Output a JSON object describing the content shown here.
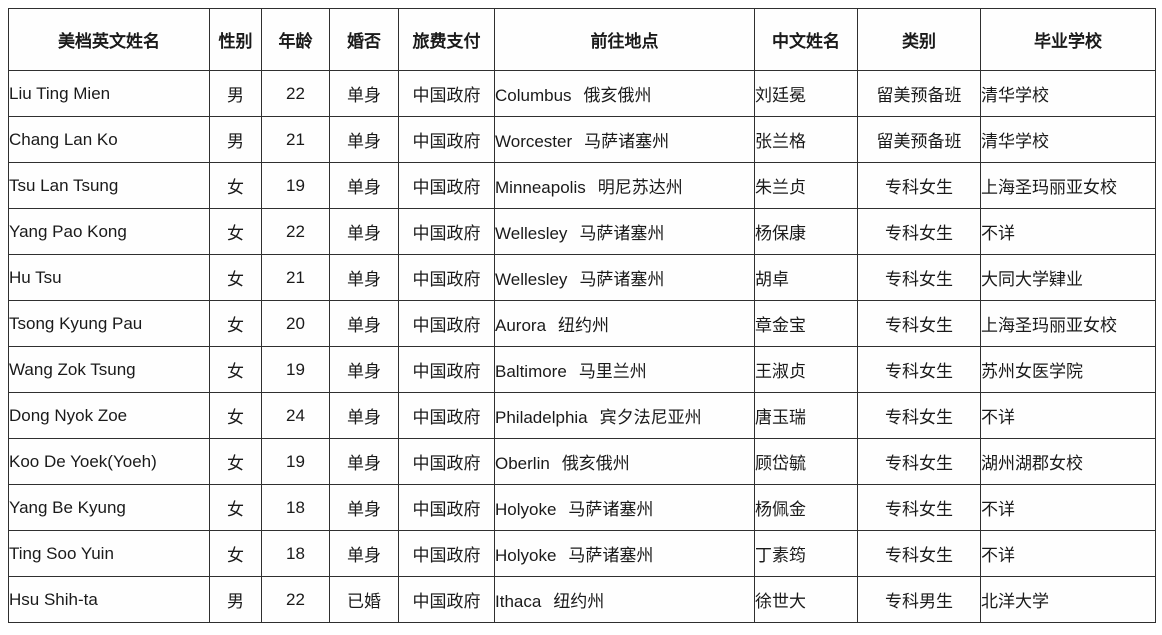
{
  "colors": {
    "background": "#ffffff",
    "border": "#2f2f2f",
    "text": "#1a1a1a"
  },
  "table": {
    "columns": [
      "美档英文姓名",
      "性别",
      "年龄",
      "婚否",
      "旅费支付",
      "前往地点",
      "中文姓名",
      "类别",
      "毕业学校"
    ],
    "rows": [
      {
        "english_name": "Liu Ting Mien",
        "gender": "男",
        "age": "22",
        "marital": "单身",
        "travel_paid_by": "中国政府",
        "destination_en": "Columbus",
        "destination_cn": "俄亥俄州",
        "chinese_name": "刘廷冕",
        "category": "留美预备班",
        "school": "清华学校"
      },
      {
        "english_name": "Chang Lan Ko",
        "gender": "男",
        "age": "21",
        "marital": "单身",
        "travel_paid_by": "中国政府",
        "destination_en": "Worcester",
        "destination_cn": "马萨诸塞州",
        "chinese_name": "张兰格",
        "category": "留美预备班",
        "school": "清华学校"
      },
      {
        "english_name": "Tsu Lan Tsung",
        "gender": "女",
        "age": "19",
        "marital": "单身",
        "travel_paid_by": "中国政府",
        "destination_en": "Minneapolis",
        "destination_cn": "明尼苏达州",
        "chinese_name": "朱兰贞",
        "category": "专科女生",
        "school": "上海圣玛丽亚女校"
      },
      {
        "english_name": "Yang Pao Kong",
        "gender": "女",
        "age": "22",
        "marital": "单身",
        "travel_paid_by": "中国政府",
        "destination_en": "Wellesley",
        "destination_cn": "马萨诸塞州",
        "chinese_name": "杨保康",
        "category": "专科女生",
        "school": "不详"
      },
      {
        "english_name": "Hu Tsu",
        "gender": "女",
        "age": "21",
        "marital": "单身",
        "travel_paid_by": "中国政府",
        "destination_en": "Wellesley",
        "destination_cn": "马萨诸塞州",
        "chinese_name": "胡卓",
        "category": "专科女生",
        "school": "大同大学肄业"
      },
      {
        "english_name": "Tsong Kyung Pau",
        "gender": "女",
        "age": "20",
        "marital": "单身",
        "travel_paid_by": "中国政府",
        "destination_en": "Aurora",
        "destination_cn": "纽约州",
        "chinese_name": "章金宝",
        "category": "专科女生",
        "school": "上海圣玛丽亚女校"
      },
      {
        "english_name": "Wang Zok Tsung",
        "gender": "女",
        "age": "19",
        "marital": "单身",
        "travel_paid_by": "中国政府",
        "destination_en": "Baltimore",
        "destination_cn": "马里兰州",
        "chinese_name": "王淑贞",
        "category": "专科女生",
        "school": "苏州女医学院"
      },
      {
        "english_name": "Dong Nyok Zoe",
        "gender": "女",
        "age": "24",
        "marital": "单身",
        "travel_paid_by": "中国政府",
        "destination_en": "Philadelphia",
        "destination_cn": "宾夕法尼亚州",
        "chinese_name": "唐玉瑞",
        "category": "专科女生",
        "school": "不详"
      },
      {
        "english_name": "Koo De Yoek(Yoeh)",
        "gender": "女",
        "age": "19",
        "marital": "单身",
        "travel_paid_by": "中国政府",
        "destination_en": "Oberlin",
        "destination_cn": "俄亥俄州",
        "chinese_name": "顾岱毓",
        "category": "专科女生",
        "school": "湖州湖郡女校"
      },
      {
        "english_name": "Yang Be Kyung",
        "gender": "女",
        "age": "18",
        "marital": "单身",
        "travel_paid_by": "中国政府",
        "destination_en": "Holyoke",
        "destination_cn": "马萨诸塞州",
        "chinese_name": "杨佩金",
        "category": "专科女生",
        "school": "不详"
      },
      {
        "english_name": "Ting Soo Yuin",
        "gender": "女",
        "age": "18",
        "marital": "单身",
        "travel_paid_by": "中国政府",
        "destination_en": "Holyoke",
        "destination_cn": "马萨诸塞州",
        "chinese_name": "丁素筠",
        "category": "专科女生",
        "school": "不详"
      },
      {
        "english_name": "Hsu Shih-ta",
        "gender": "男",
        "age": "22",
        "marital": "已婚",
        "travel_paid_by": "中国政府",
        "destination_en": "Ithaca",
        "destination_cn": "纽约州",
        "chinese_name": "徐世大",
        "category": "专科男生",
        "school": "北洋大学"
      }
    ]
  }
}
